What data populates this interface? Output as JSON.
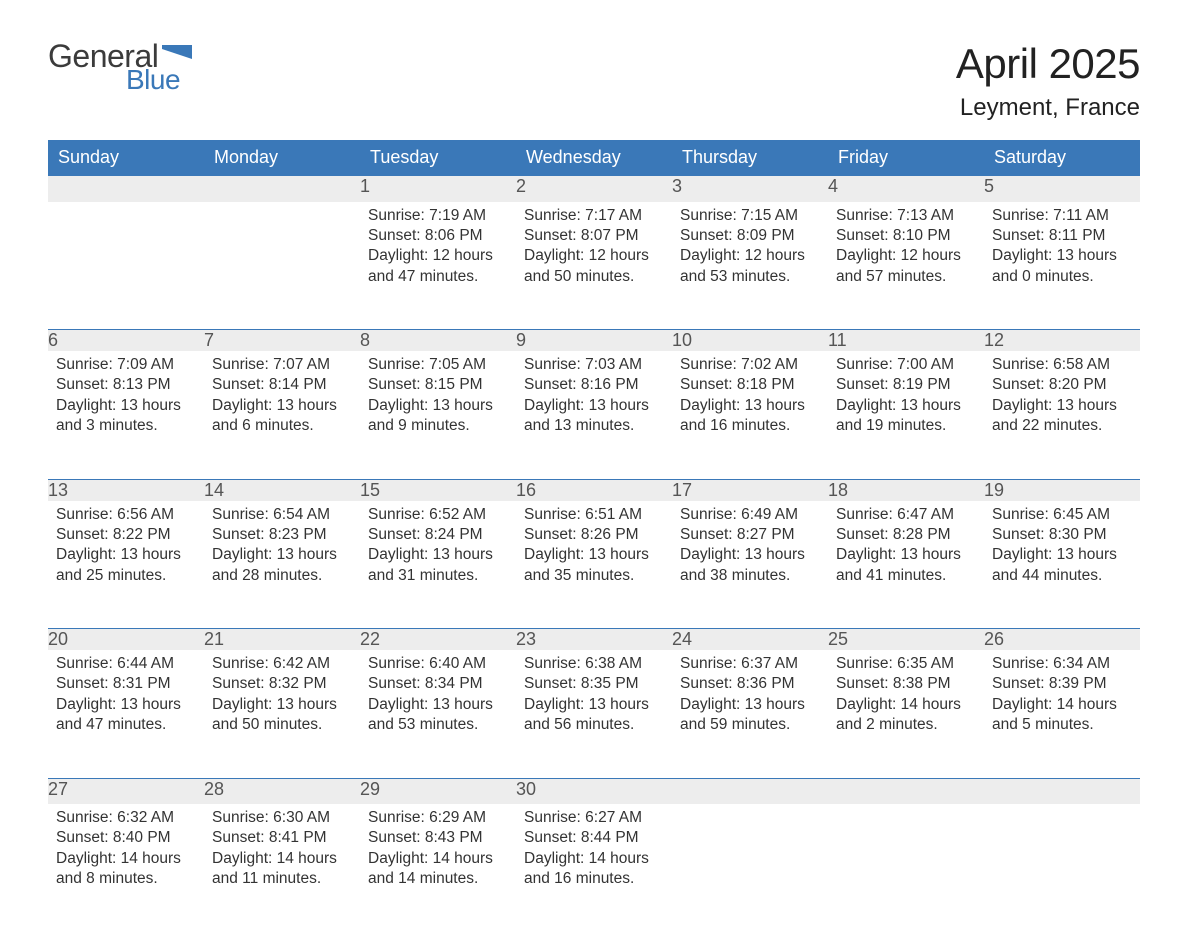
{
  "logo": {
    "text_general": "General",
    "text_blue": "Blue",
    "flag_color": "#3a78b8"
  },
  "title": "April 2025",
  "location": "Leyment, France",
  "colors": {
    "header_bg": "#3a78b8",
    "header_text": "#ffffff",
    "daynum_bg": "#ededed",
    "daynum_border": "#3a78b8",
    "body_text": "#333333",
    "background": "#ffffff"
  },
  "typography": {
    "title_fontsize": 42,
    "location_fontsize": 24,
    "header_fontsize": 18,
    "daynum_fontsize": 18,
    "cell_fontsize": 15.5
  },
  "day_headers": [
    "Sunday",
    "Monday",
    "Tuesday",
    "Wednesday",
    "Thursday",
    "Friday",
    "Saturday"
  ],
  "weeks": [
    [
      null,
      null,
      {
        "n": "1",
        "sunrise": "Sunrise: 7:19 AM",
        "sunset": "Sunset: 8:06 PM",
        "day1": "Daylight: 12 hours",
        "day2": "and 47 minutes."
      },
      {
        "n": "2",
        "sunrise": "Sunrise: 7:17 AM",
        "sunset": "Sunset: 8:07 PM",
        "day1": "Daylight: 12 hours",
        "day2": "and 50 minutes."
      },
      {
        "n": "3",
        "sunrise": "Sunrise: 7:15 AM",
        "sunset": "Sunset: 8:09 PM",
        "day1": "Daylight: 12 hours",
        "day2": "and 53 minutes."
      },
      {
        "n": "4",
        "sunrise": "Sunrise: 7:13 AM",
        "sunset": "Sunset: 8:10 PM",
        "day1": "Daylight: 12 hours",
        "day2": "and 57 minutes."
      },
      {
        "n": "5",
        "sunrise": "Sunrise: 7:11 AM",
        "sunset": "Sunset: 8:11 PM",
        "day1": "Daylight: 13 hours",
        "day2": "and 0 minutes."
      }
    ],
    [
      {
        "n": "6",
        "sunrise": "Sunrise: 7:09 AM",
        "sunset": "Sunset: 8:13 PM",
        "day1": "Daylight: 13 hours",
        "day2": "and 3 minutes."
      },
      {
        "n": "7",
        "sunrise": "Sunrise: 7:07 AM",
        "sunset": "Sunset: 8:14 PM",
        "day1": "Daylight: 13 hours",
        "day2": "and 6 minutes."
      },
      {
        "n": "8",
        "sunrise": "Sunrise: 7:05 AM",
        "sunset": "Sunset: 8:15 PM",
        "day1": "Daylight: 13 hours",
        "day2": "and 9 minutes."
      },
      {
        "n": "9",
        "sunrise": "Sunrise: 7:03 AM",
        "sunset": "Sunset: 8:16 PM",
        "day1": "Daylight: 13 hours",
        "day2": "and 13 minutes."
      },
      {
        "n": "10",
        "sunrise": "Sunrise: 7:02 AM",
        "sunset": "Sunset: 8:18 PM",
        "day1": "Daylight: 13 hours",
        "day2": "and 16 minutes."
      },
      {
        "n": "11",
        "sunrise": "Sunrise: 7:00 AM",
        "sunset": "Sunset: 8:19 PM",
        "day1": "Daylight: 13 hours",
        "day2": "and 19 minutes."
      },
      {
        "n": "12",
        "sunrise": "Sunrise: 6:58 AM",
        "sunset": "Sunset: 8:20 PM",
        "day1": "Daylight: 13 hours",
        "day2": "and 22 minutes."
      }
    ],
    [
      {
        "n": "13",
        "sunrise": "Sunrise: 6:56 AM",
        "sunset": "Sunset: 8:22 PM",
        "day1": "Daylight: 13 hours",
        "day2": "and 25 minutes."
      },
      {
        "n": "14",
        "sunrise": "Sunrise: 6:54 AM",
        "sunset": "Sunset: 8:23 PM",
        "day1": "Daylight: 13 hours",
        "day2": "and 28 minutes."
      },
      {
        "n": "15",
        "sunrise": "Sunrise: 6:52 AM",
        "sunset": "Sunset: 8:24 PM",
        "day1": "Daylight: 13 hours",
        "day2": "and 31 minutes."
      },
      {
        "n": "16",
        "sunrise": "Sunrise: 6:51 AM",
        "sunset": "Sunset: 8:26 PM",
        "day1": "Daylight: 13 hours",
        "day2": "and 35 minutes."
      },
      {
        "n": "17",
        "sunrise": "Sunrise: 6:49 AM",
        "sunset": "Sunset: 8:27 PM",
        "day1": "Daylight: 13 hours",
        "day2": "and 38 minutes."
      },
      {
        "n": "18",
        "sunrise": "Sunrise: 6:47 AM",
        "sunset": "Sunset: 8:28 PM",
        "day1": "Daylight: 13 hours",
        "day2": "and 41 minutes."
      },
      {
        "n": "19",
        "sunrise": "Sunrise: 6:45 AM",
        "sunset": "Sunset: 8:30 PM",
        "day1": "Daylight: 13 hours",
        "day2": "and 44 minutes."
      }
    ],
    [
      {
        "n": "20",
        "sunrise": "Sunrise: 6:44 AM",
        "sunset": "Sunset: 8:31 PM",
        "day1": "Daylight: 13 hours",
        "day2": "and 47 minutes."
      },
      {
        "n": "21",
        "sunrise": "Sunrise: 6:42 AM",
        "sunset": "Sunset: 8:32 PM",
        "day1": "Daylight: 13 hours",
        "day2": "and 50 minutes."
      },
      {
        "n": "22",
        "sunrise": "Sunrise: 6:40 AM",
        "sunset": "Sunset: 8:34 PM",
        "day1": "Daylight: 13 hours",
        "day2": "and 53 minutes."
      },
      {
        "n": "23",
        "sunrise": "Sunrise: 6:38 AM",
        "sunset": "Sunset: 8:35 PM",
        "day1": "Daylight: 13 hours",
        "day2": "and 56 minutes."
      },
      {
        "n": "24",
        "sunrise": "Sunrise: 6:37 AM",
        "sunset": "Sunset: 8:36 PM",
        "day1": "Daylight: 13 hours",
        "day2": "and 59 minutes."
      },
      {
        "n": "25",
        "sunrise": "Sunrise: 6:35 AM",
        "sunset": "Sunset: 8:38 PM",
        "day1": "Daylight: 14 hours",
        "day2": "and 2 minutes."
      },
      {
        "n": "26",
        "sunrise": "Sunrise: 6:34 AM",
        "sunset": "Sunset: 8:39 PM",
        "day1": "Daylight: 14 hours",
        "day2": "and 5 minutes."
      }
    ],
    [
      {
        "n": "27",
        "sunrise": "Sunrise: 6:32 AM",
        "sunset": "Sunset: 8:40 PM",
        "day1": "Daylight: 14 hours",
        "day2": "and 8 minutes."
      },
      {
        "n": "28",
        "sunrise": "Sunrise: 6:30 AM",
        "sunset": "Sunset: 8:41 PM",
        "day1": "Daylight: 14 hours",
        "day2": "and 11 minutes."
      },
      {
        "n": "29",
        "sunrise": "Sunrise: 6:29 AM",
        "sunset": "Sunset: 8:43 PM",
        "day1": "Daylight: 14 hours",
        "day2": "and 14 minutes."
      },
      {
        "n": "30",
        "sunrise": "Sunrise: 6:27 AM",
        "sunset": "Sunset: 8:44 PM",
        "day1": "Daylight: 14 hours",
        "day2": "and 16 minutes."
      },
      null,
      null,
      null
    ]
  ]
}
